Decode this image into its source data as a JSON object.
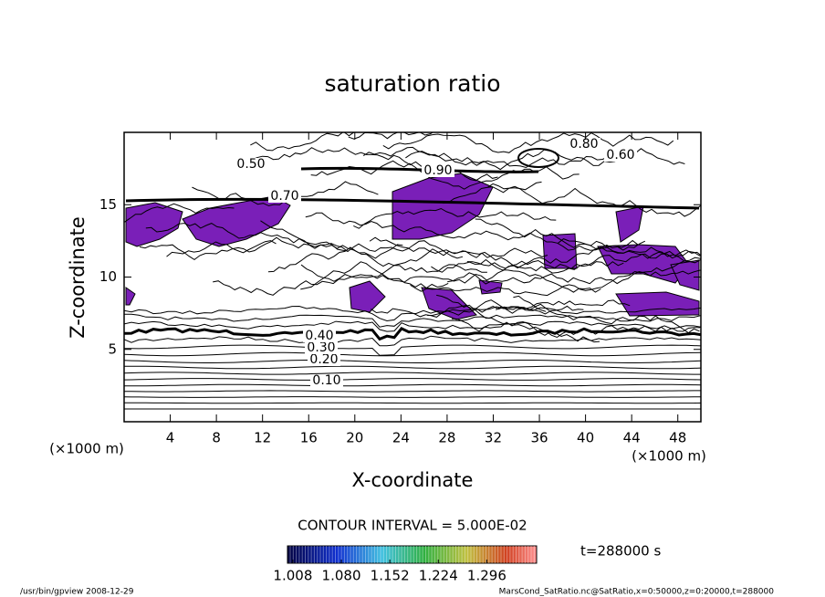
{
  "chart_data": {
    "type": "contour",
    "title": "saturation ratio",
    "x_label": "X-coordinate",
    "y_label": "Z-coordinate",
    "x_unit": "(×1000 m)",
    "y_unit": "(×1000 m)",
    "xlim": [
      0,
      50
    ],
    "xticks": [
      4,
      8,
      12,
      16,
      20,
      24,
      28,
      32,
      36,
      40,
      44,
      48
    ],
    "ylim": [
      0,
      20
    ],
    "yticks": [
      5,
      10,
      15
    ],
    "contour_interval_text": "CONTOUR INTERVAL = 5.000E-02",
    "contour_labels": [
      {
        "value": 0.1,
        "label": "0.10"
      },
      {
        "value": 0.2,
        "label": "0.20"
      },
      {
        "value": 0.3,
        "label": "0.30"
      },
      {
        "value": 0.4,
        "label": "0.40"
      },
      {
        "value": 0.5,
        "label": "0.50"
      },
      {
        "value": 0.6,
        "label": "0.60"
      },
      {
        "value": 0.7,
        "label": "0.70"
      },
      {
        "value": 0.8,
        "label": "0.80"
      },
      {
        "value": 0.9,
        "label": "0.90"
      }
    ],
    "fill_color": "#7a1fb8",
    "colorbar": {
      "lim": [
        1.0,
        1.37
      ],
      "ticks": [
        {
          "value": 1.008,
          "label": "1.008"
        },
        {
          "value": 1.08,
          "label": "1.080"
        },
        {
          "value": 1.152,
          "label": "1.152"
        },
        {
          "value": 1.224,
          "label": "1.224"
        },
        {
          "value": 1.296,
          "label": "1.296"
        }
      ]
    },
    "time_text": "t=288000 s",
    "footer_left": "/usr/bin/gpview  2008-12-29",
    "footer_right": "MarsCond_SatRatio.nc@SatRatio,x=0:50000,z=0:20000,t=288000"
  }
}
